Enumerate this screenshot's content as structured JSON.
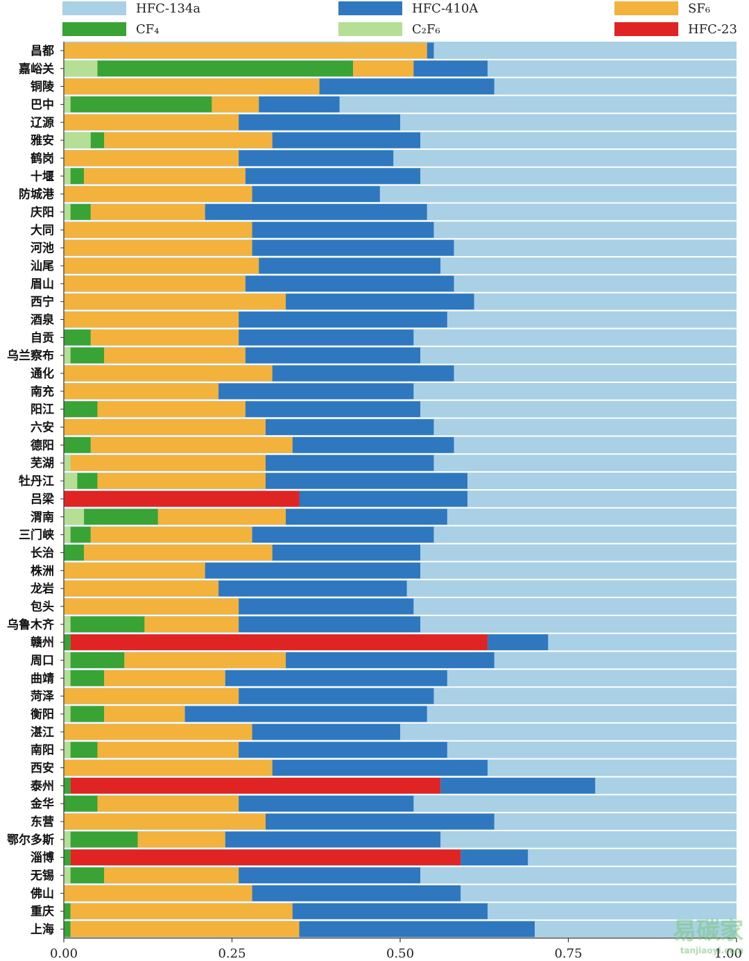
{
  "chart_data": {
    "type": "bar",
    "orientation": "horizontal",
    "stacked": true,
    "normalized": true,
    "title": "",
    "xlabel": "",
    "ylabel": "",
    "xlim": [
      0,
      1
    ],
    "xticks": [
      "0.00",
      "0.25",
      "0.50",
      "0.75",
      "1.00"
    ],
    "legend": {
      "placement": "top",
      "items": [
        {
          "name": "HFC-134a",
          "color": "#a9d0e4"
        },
        {
          "name": "HFC-410A",
          "color": "#2f78bf"
        },
        {
          "name": "SF₆",
          "color": "#f3b23b"
        },
        {
          "name": "CF₄",
          "color": "#3aa336"
        },
        {
          "name": "C₂F₆",
          "color": "#b4df94"
        },
        {
          "name": "HFC-23",
          "color": "#e02424"
        }
      ]
    },
    "series_order": [
      "C₂F₆",
      "CF₄",
      "HFC-23",
      "SF₆",
      "HFC-410A",
      "HFC-134a"
    ],
    "categories": [
      "昌都",
      "嘉峪关",
      "铜陵",
      "巴中",
      "辽源",
      "雅安",
      "鹤岗",
      "十堰",
      "防城港",
      "庆阳",
      "大同",
      "河池",
      "汕尾",
      "眉山",
      "西宁",
      "酒泉",
      "自贡",
      "乌兰察布",
      "通化",
      "南充",
      "阳江",
      "六安",
      "德阳",
      "芜湖",
      "牡丹江",
      "吕梁",
      "渭南",
      "三门峡",
      "长治",
      "株洲",
      "龙岩",
      "包头",
      "乌鲁木齐",
      "赣州",
      "周口",
      "曲靖",
      "菏泽",
      "衡阳",
      "湛江",
      "南阳",
      "西安",
      "泰州",
      "金华",
      "东营",
      "鄂尔多斯",
      "淄博",
      "无锡",
      "佛山",
      "重庆",
      "上海"
    ],
    "series": [
      {
        "name": "C₂F₆",
        "values": [
          0.0,
          0.05,
          0.0,
          0.01,
          0.0,
          0.04,
          0.0,
          0.01,
          0.0,
          0.01,
          0.0,
          0.0,
          0.0,
          0.0,
          0.0,
          0.0,
          0.0,
          0.01,
          0.0,
          0.0,
          0.0,
          0.0,
          0.0,
          0.01,
          0.02,
          0.0,
          0.03,
          0.01,
          0.0,
          0.0,
          0.0,
          0.0,
          0.01,
          0.0,
          0.01,
          0.01,
          0.0,
          0.01,
          0.0,
          0.01,
          0.0,
          0.0,
          0.0,
          0.0,
          0.01,
          0.0,
          0.01,
          0.0,
          0.0,
          0.0
        ]
      },
      {
        "name": "CF₄",
        "values": [
          0.0,
          0.38,
          0.0,
          0.21,
          0.0,
          0.02,
          0.0,
          0.02,
          0.0,
          0.03,
          0.0,
          0.0,
          0.0,
          0.0,
          0.0,
          0.0,
          0.04,
          0.05,
          0.0,
          0.0,
          0.05,
          0.0,
          0.04,
          0.0,
          0.03,
          0.0,
          0.11,
          0.03,
          0.03,
          0.0,
          0.0,
          0.0,
          0.11,
          0.01,
          0.08,
          0.05,
          0.0,
          0.05,
          0.0,
          0.04,
          0.0,
          0.01,
          0.05,
          0.0,
          0.1,
          0.01,
          0.05,
          0.0,
          0.01,
          0.01
        ]
      },
      {
        "name": "HFC-23",
        "values": [
          0.0,
          0.0,
          0.0,
          0.0,
          0.0,
          0.0,
          0.0,
          0.0,
          0.0,
          0.0,
          0.0,
          0.0,
          0.0,
          0.0,
          0.0,
          0.0,
          0.0,
          0.0,
          0.0,
          0.0,
          0.0,
          0.0,
          0.0,
          0.0,
          0.0,
          0.35,
          0.0,
          0.0,
          0.0,
          0.0,
          0.0,
          0.0,
          0.0,
          0.62,
          0.0,
          0.0,
          0.0,
          0.0,
          0.0,
          0.0,
          0.0,
          0.55,
          0.0,
          0.0,
          0.0,
          0.58,
          0.0,
          0.0,
          0.0,
          0.0
        ]
      },
      {
        "name": "SF₆",
        "values": [
          0.54,
          0.09,
          0.38,
          0.07,
          0.26,
          0.25,
          0.26,
          0.24,
          0.28,
          0.17,
          0.28,
          0.28,
          0.29,
          0.27,
          0.33,
          0.26,
          0.22,
          0.21,
          0.31,
          0.23,
          0.22,
          0.3,
          0.3,
          0.29,
          0.25,
          0.0,
          0.19,
          0.24,
          0.28,
          0.21,
          0.23,
          0.26,
          0.14,
          0.0,
          0.24,
          0.18,
          0.26,
          0.12,
          0.28,
          0.21,
          0.31,
          0.0,
          0.21,
          0.3,
          0.13,
          0.0,
          0.2,
          0.28,
          0.33,
          0.34
        ]
      },
      {
        "name": "HFC-410A",
        "values": [
          0.01,
          0.11,
          0.26,
          0.12,
          0.24,
          0.22,
          0.23,
          0.26,
          0.19,
          0.33,
          0.27,
          0.3,
          0.27,
          0.31,
          0.28,
          0.31,
          0.26,
          0.26,
          0.27,
          0.29,
          0.26,
          0.25,
          0.24,
          0.25,
          0.3,
          0.25,
          0.24,
          0.27,
          0.22,
          0.32,
          0.28,
          0.26,
          0.27,
          0.09,
          0.31,
          0.33,
          0.29,
          0.36,
          0.22,
          0.31,
          0.32,
          0.23,
          0.26,
          0.34,
          0.32,
          0.1,
          0.27,
          0.31,
          0.29,
          0.35
        ]
      },
      {
        "name": "HFC-134a",
        "values": [
          0.45,
          0.37,
          0.36,
          0.59,
          0.5,
          0.47,
          0.51,
          0.47,
          0.53,
          0.46,
          0.45,
          0.42,
          0.44,
          0.42,
          0.39,
          0.43,
          0.48,
          0.47,
          0.42,
          0.48,
          0.47,
          0.45,
          0.42,
          0.45,
          0.4,
          0.4,
          0.43,
          0.45,
          0.47,
          0.47,
          0.49,
          0.48,
          0.47,
          0.28,
          0.36,
          0.43,
          0.45,
          0.46,
          0.5,
          0.43,
          0.37,
          0.21,
          0.48,
          0.36,
          0.44,
          0.31,
          0.47,
          0.41,
          0.37,
          0.3
        ]
      }
    ]
  },
  "watermark": {
    "text": "易碳家",
    "sub": "tanjiaoyi.com"
  }
}
